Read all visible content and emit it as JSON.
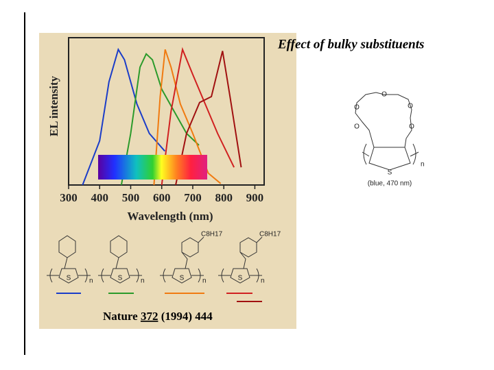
{
  "title": "Effect of bulky substituents",
  "chart_data": {
    "type": "line",
    "x_label": "Wavelength (nm)",
    "y_label": "EL intensity",
    "xlim": [
      300,
      930
    ],
    "ylim": [
      0,
      1
    ],
    "xticks": [
      300,
      400,
      500,
      600,
      700,
      800,
      900
    ],
    "series": [
      {
        "color": "#1a3cc8",
        "x": [
          345,
          400,
          430,
          460,
          480,
          520,
          560,
          610
        ],
        "values": [
          0,
          0.3,
          0.7,
          0.92,
          0.85,
          0.55,
          0.35,
          0.23
        ]
      },
      {
        "color": "#2a9a2a",
        "x": [
          470,
          500,
          530,
          550,
          570,
          600,
          640,
          680,
          720
        ],
        "values": [
          0,
          0.35,
          0.8,
          0.89,
          0.85,
          0.65,
          0.5,
          0.35,
          0.27
        ]
      },
      {
        "color": "#f07a10",
        "x": [
          575,
          595,
          611,
          630,
          660,
          700,
          750,
          790
        ],
        "values": [
          0,
          0.6,
          0.92,
          0.8,
          0.55,
          0.35,
          0.08,
          0.01
        ]
      },
      {
        "color": "#d02020",
        "x": [
          600,
          630,
          667,
          700,
          740,
          780,
          833
        ],
        "values": [
          0,
          0.5,
          0.92,
          0.75,
          0.55,
          0.35,
          0.12
        ]
      },
      {
        "color": "#a01010",
        "x": [
          645,
          680,
          722,
          760,
          796,
          820,
          856
        ],
        "values": [
          0,
          0.35,
          0.56,
          0.6,
          0.91,
          0.6,
          0.12
        ]
      }
    ]
  },
  "citation": {
    "journal": "Nature",
    "volume": "372",
    "rest": "(1994) 444"
  },
  "polymer_structures": [
    {
      "atom": "S",
      "repeat": "n"
    },
    {
      "atom": "S",
      "repeat": "n"
    },
    {
      "atom": "S",
      "repeat": "n",
      "substituent": "C8H17"
    },
    {
      "atom": "S",
      "repeat": "n",
      "substituent": "C8H17"
    }
  ],
  "crown_ether": {
    "atoms": [
      "O",
      "O",
      "O",
      "O",
      "O",
      "S"
    ],
    "repeat": "n",
    "label": "(blue, 470 nm)"
  }
}
